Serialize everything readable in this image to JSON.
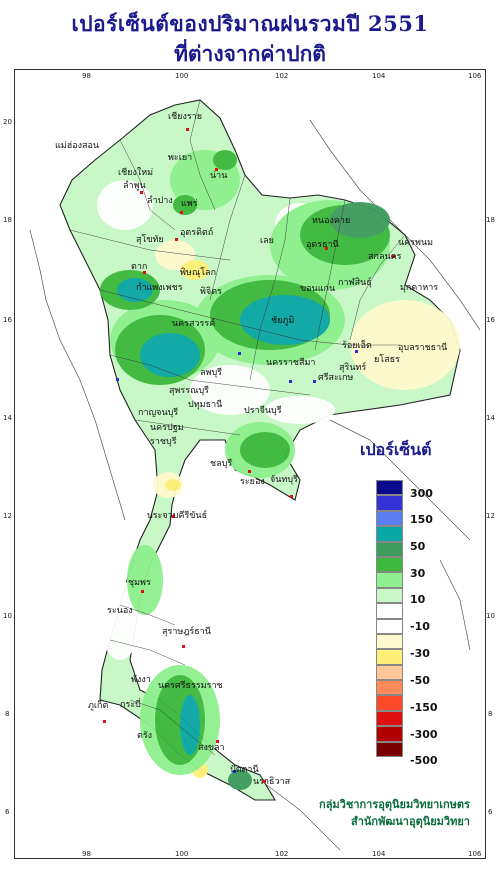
{
  "title": {
    "line1": "เปอร์เซ็นต์ของปริมาณฝนรวมปี  2551",
    "line2": "ที่ต่างจากค่าปกติ"
  },
  "axes": {
    "lon_top": [
      "98",
      "100",
      "102",
      "104",
      "106"
    ],
    "lon_bottom": [
      "98",
      "100",
      "102",
      "104",
      "106"
    ],
    "lat_left": [
      "20",
      "18",
      "16",
      "14",
      "12",
      "10",
      "8",
      "6"
    ],
    "lat_right": [
      "18",
      "16",
      "14",
      "12",
      "10",
      "8",
      "6"
    ]
  },
  "legend": {
    "title": "เปอร์เซ็นต์",
    "labels": [
      "300",
      "150",
      "50",
      "30",
      "10",
      "-10",
      "-30",
      "-50",
      "-150",
      "-300",
      "-500"
    ],
    "colors": [
      "#0a0a8c",
      "#3434d6",
      "#5a7ef0",
      "#0aa5a5",
      "#3e9b5e",
      "#3cb83c",
      "#8ef08e",
      "#c8f8c8",
      "#ffffff",
      "#ffffff",
      "#fffacd",
      "#fff07a",
      "#ffc89a",
      "#ff8c5a",
      "#ff4a2a",
      "#e01010",
      "#b00000",
      "#7a0000"
    ]
  },
  "provinces": [
    "เชียงราย",
    "แม่ฮ่องสอน",
    "พะเยา",
    "เชียงใหม่",
    "ลำพูน",
    "น่าน",
    "ลำปาง",
    "แพร่",
    "ตาก",
    "สุโขทัย",
    "อุตรดิตถ์",
    "พิษณุโลก",
    "เลย",
    "หนองคาย",
    "อุดรธานี",
    "สกลนคร",
    "นครพนม",
    "มุกดาหาร",
    "กำแพงเพชร",
    "พิจิตร",
    "ขอนแก่น",
    "กาฬสินธุ์",
    "ชัยภูมิ",
    "นครสวรรค์",
    "ร้อยเอ็ด",
    "อุบลราชธานี",
    "ยโสธร",
    "นครราชสีมา",
    "สุรินทร์",
    "ศรีสะเกษ",
    "ลพบุรี",
    "สุพรรณบุรี",
    "กาญจนบุรี",
    "ปทุมธานี",
    "ปราจีนบุรี",
    "นครปฐม",
    "ราชบุรี",
    "ชลบุรี",
    "จันทบุรี",
    "ระยอง",
    "ประจวบคีรีขันธ์",
    "ชุมพร",
    "ระนอง",
    "สุราษฎร์ธานี",
    "นครศรีธรรมราช",
    "พังงา",
    "กระบี่",
    "ภูเก็ต",
    "ตรัง",
    "สงขลา",
    "ปัตตานี",
    "นราธิวาส"
  ],
  "credit": {
    "line1": "กลุ่มวิชาการอุตุนิยมวิทยาเกษตร",
    "line2": "สำนักพัฒนาอุตุนิยมวิทยา"
  }
}
